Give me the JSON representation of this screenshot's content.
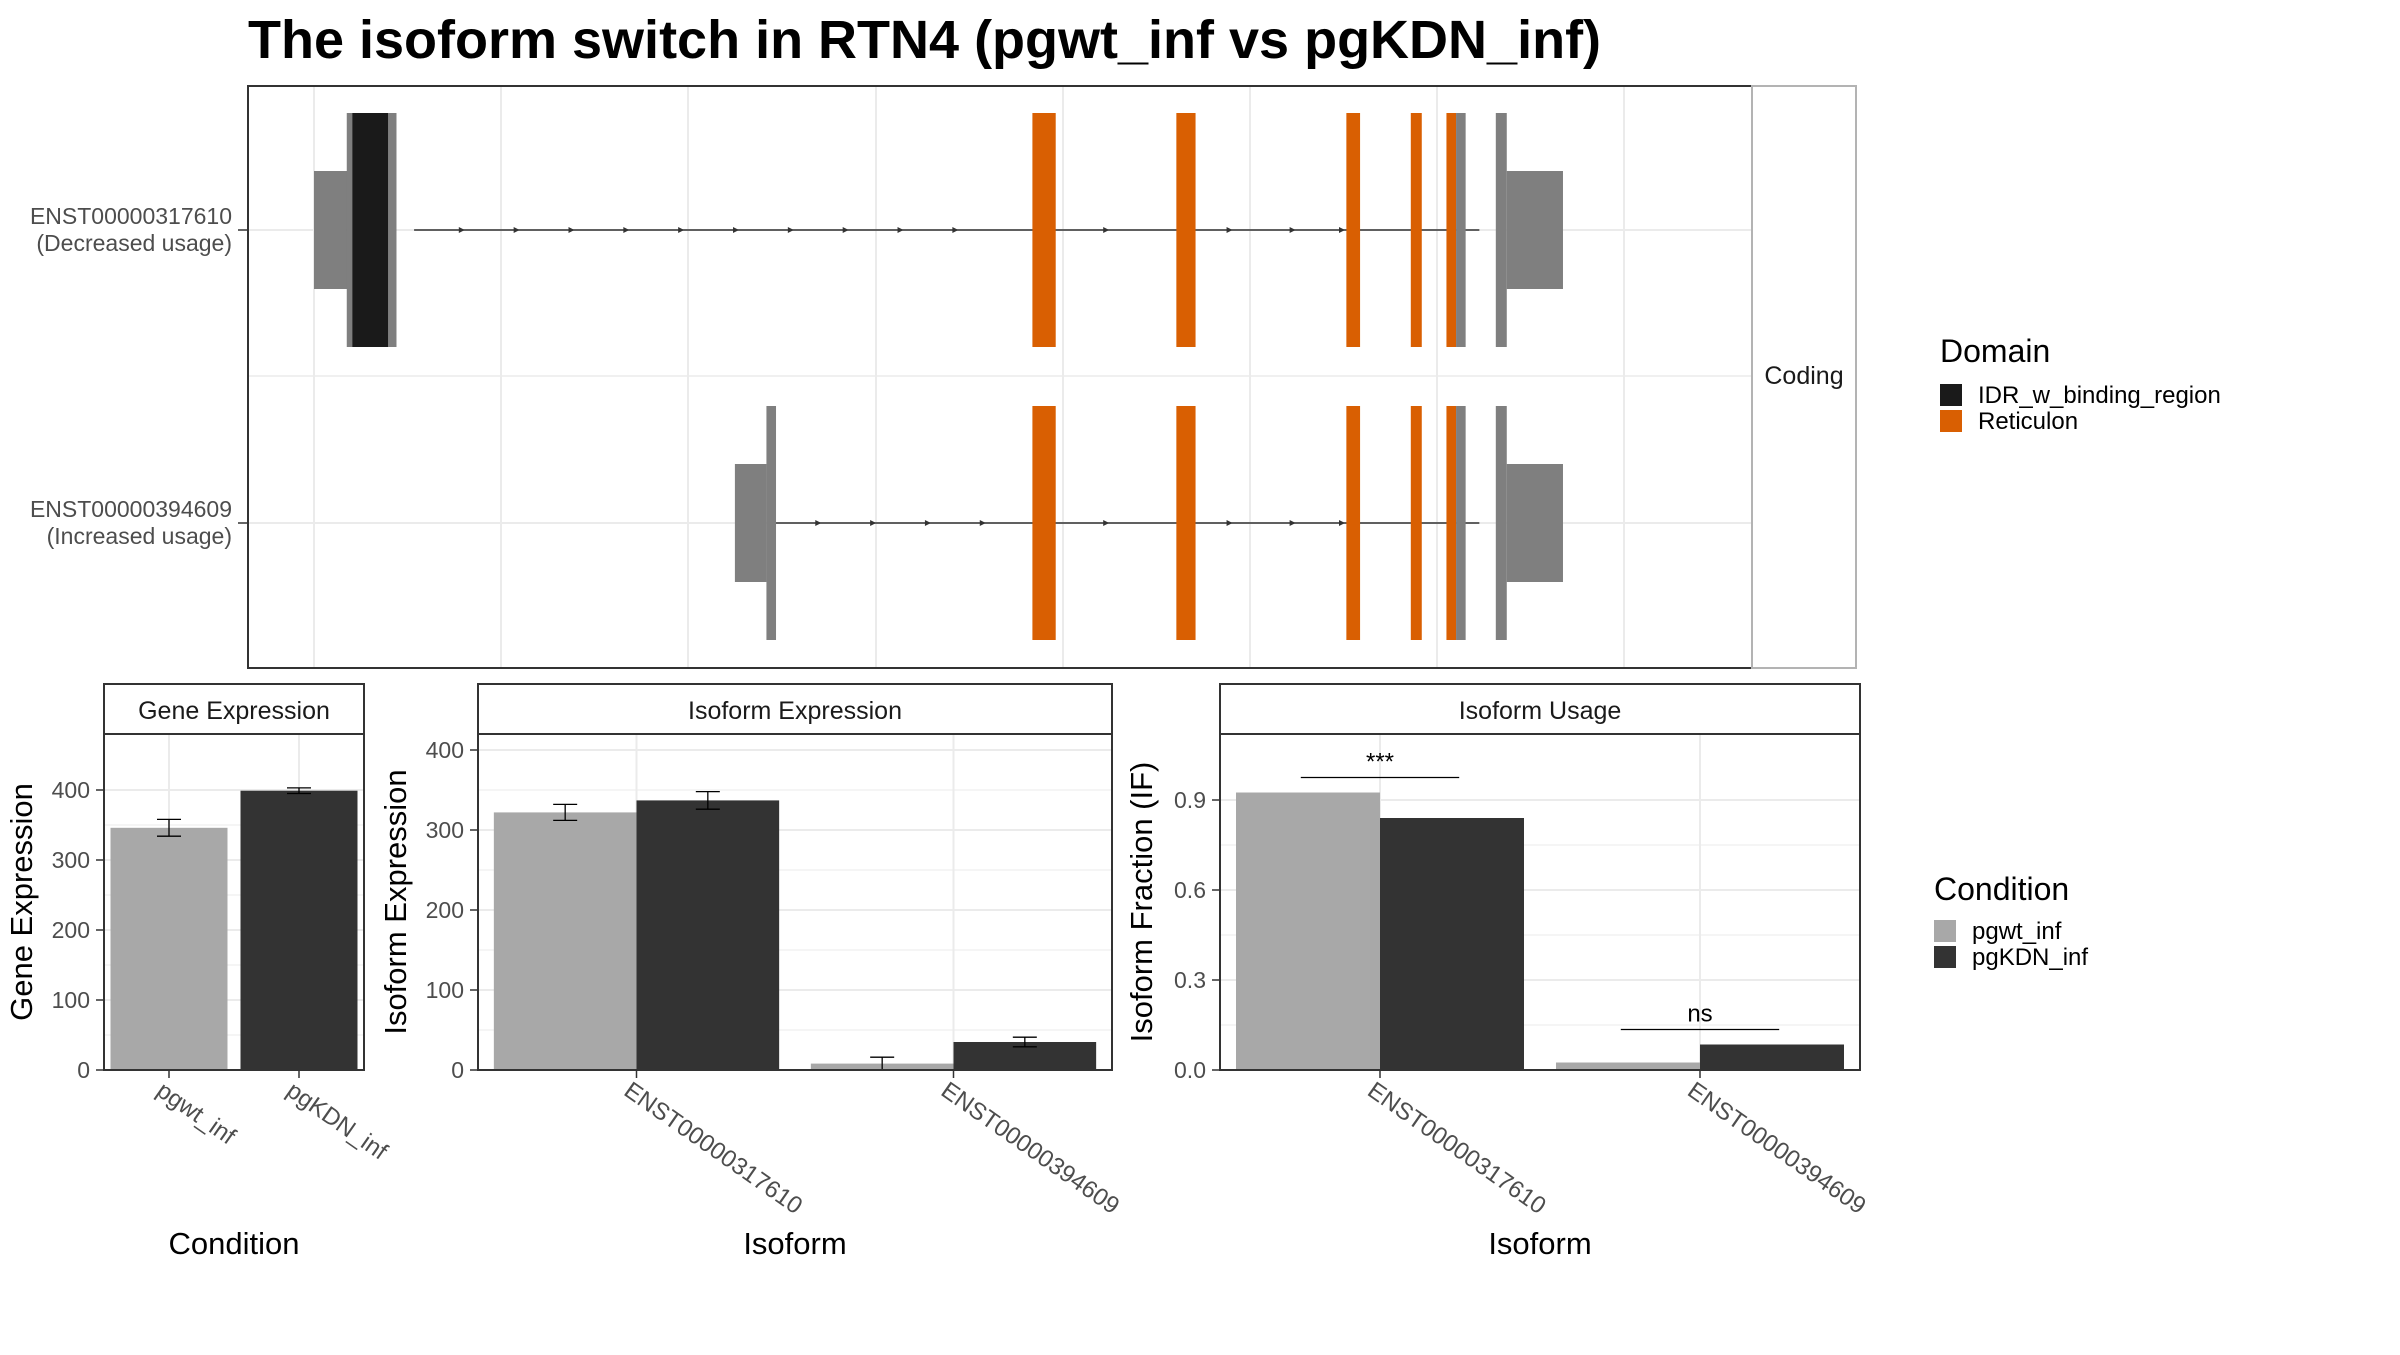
{
  "title": "The isoform switch in RTN4 (pgwt_inf vs pgKDN_inf)",
  "colors": {
    "idr": "#1a1a1a",
    "reticulon": "#d95f02",
    "exon": "#7f7f7f",
    "pgwt_inf": "#a8a8a8",
    "pgKDN_inf": "#333333",
    "grid": "#ebebeb",
    "strip_fill": "#ffffff"
  },
  "chart_data": [
    {
      "type": "gene-structure",
      "strip_label": "Coding",
      "x_range": [
        0,
        1
      ],
      "transcripts": [
        {
          "id": "ENST00000317610",
          "label_line1": "ENST00000317610",
          "label_line2": "(Decreased usage)",
          "intron_start": 0.073,
          "intron_end": 0.85,
          "arrow_positions": [
            0.11,
            0.15,
            0.19,
            0.23,
            0.27,
            0.31,
            0.35,
            0.39,
            0.43,
            0.47,
            0.58,
            0.67,
            0.716,
            0.752
          ],
          "exons": [
            {
              "start": 0.0,
              "end": 0.024,
              "kind": "utr"
            },
            {
              "start": 0.024,
              "end": 0.06,
              "kind": "cds",
              "domain": "IDR_w_binding_region"
            },
            {
              "start": 0.054,
              "end": 0.06,
              "kind": "cds"
            },
            {
              "start": 0.024,
              "end": 0.028,
              "kind": "cds"
            },
            {
              "start": 0.524,
              "end": 0.541,
              "kind": "cds",
              "domain": "Reticulon"
            },
            {
              "start": 0.629,
              "end": 0.643,
              "kind": "cds",
              "domain": "Reticulon"
            },
            {
              "start": 0.753,
              "end": 0.763,
              "kind": "cds",
              "domain": "Reticulon"
            },
            {
              "start": 0.8,
              "end": 0.808,
              "kind": "cds",
              "domain": "Reticulon"
            },
            {
              "start": 0.826,
              "end": 0.833,
              "kind": "cds",
              "domain": "Reticulon"
            },
            {
              "start": 0.833,
              "end": 0.84,
              "kind": "cds"
            },
            {
              "start": 0.862,
              "end": 0.87,
              "kind": "cds"
            },
            {
              "start": 0.87,
              "end": 0.911,
              "kind": "utr"
            }
          ]
        },
        {
          "id": "ENST00000394609",
          "label_line1": "ENST00000394609",
          "label_line2": "(Increased usage)",
          "intron_start": 0.33,
          "intron_end": 0.85,
          "arrow_positions": [
            0.37,
            0.41,
            0.45,
            0.49,
            0.58,
            0.67,
            0.716,
            0.752
          ],
          "exons": [
            {
              "start": 0.307,
              "end": 0.33,
              "kind": "utr"
            },
            {
              "start": 0.33,
              "end": 0.337,
              "kind": "cds"
            },
            {
              "start": 0.524,
              "end": 0.541,
              "kind": "cds",
              "domain": "Reticulon"
            },
            {
              "start": 0.629,
              "end": 0.643,
              "kind": "cds",
              "domain": "Reticulon"
            },
            {
              "start": 0.753,
              "end": 0.763,
              "kind": "cds",
              "domain": "Reticulon"
            },
            {
              "start": 0.8,
              "end": 0.808,
              "kind": "cds",
              "domain": "Reticulon"
            },
            {
              "start": 0.826,
              "end": 0.833,
              "kind": "cds",
              "domain": "Reticulon"
            },
            {
              "start": 0.833,
              "end": 0.84,
              "kind": "cds"
            },
            {
              "start": 0.862,
              "end": 0.87,
              "kind": "cds"
            },
            {
              "start": 0.87,
              "end": 0.911,
              "kind": "utr"
            }
          ]
        }
      ],
      "legend": {
        "title": "Domain",
        "entries": [
          {
            "label": "IDR_w_binding_region",
            "color_key": "idr"
          },
          {
            "label": "Reticulon",
            "color_key": "reticulon"
          }
        ]
      }
    },
    {
      "type": "bar",
      "strip_label": "Gene Expression",
      "xlabel": "Condition",
      "ylabel": "Gene Expression",
      "ylim": [
        0,
        480
      ],
      "yticks": [
        0,
        100,
        200,
        300,
        400
      ],
      "categories": [
        "pgwt_inf",
        "pgKDN_inf"
      ],
      "values": [
        346,
        399
      ],
      "errors": [
        12,
        4
      ],
      "colors": [
        "pgwt_inf",
        "pgKDN_inf"
      ]
    },
    {
      "type": "bar",
      "strip_label": "Isoform Expression",
      "xlabel": "Isoform",
      "ylabel": "Isoform Expression",
      "ylim": [
        0,
        420
      ],
      "yticks": [
        0,
        100,
        200,
        300,
        400
      ],
      "categories": [
        "ENST00000317610",
        "ENST00000394609"
      ],
      "series": [
        {
          "name": "pgwt_inf",
          "values": [
            322,
            8
          ],
          "errors": [
            10,
            8
          ]
        },
        {
          "name": "pgKDN_inf",
          "values": [
            337,
            35
          ],
          "errors": [
            11,
            6
          ]
        }
      ]
    },
    {
      "type": "bar",
      "strip_label": "Isoform Usage",
      "xlabel": "Isoform",
      "ylabel": "Isoform Fraction (IF)",
      "ylim": [
        0,
        1.12
      ],
      "yticks": [
        "0.0",
        "0.3",
        "0.6",
        "0.9"
      ],
      "ytick_values": [
        0,
        0.3,
        0.6,
        0.9
      ],
      "categories": [
        "ENST00000317610",
        "ENST00000394609"
      ],
      "series": [
        {
          "name": "pgwt_inf",
          "values": [
            0.925,
            0.025
          ]
        },
        {
          "name": "pgKDN_inf",
          "values": [
            0.84,
            0.085
          ]
        }
      ],
      "significance": [
        "***",
        "ns"
      ],
      "sig_levels": [
        0.975,
        0.135
      ]
    }
  ],
  "condition_legend": {
    "title": "Condition",
    "entries": [
      {
        "label": "pgwt_inf",
        "color_key": "pgwt_inf"
      },
      {
        "label": "pgKDN_inf",
        "color_key": "pgKDN_inf"
      }
    ]
  }
}
